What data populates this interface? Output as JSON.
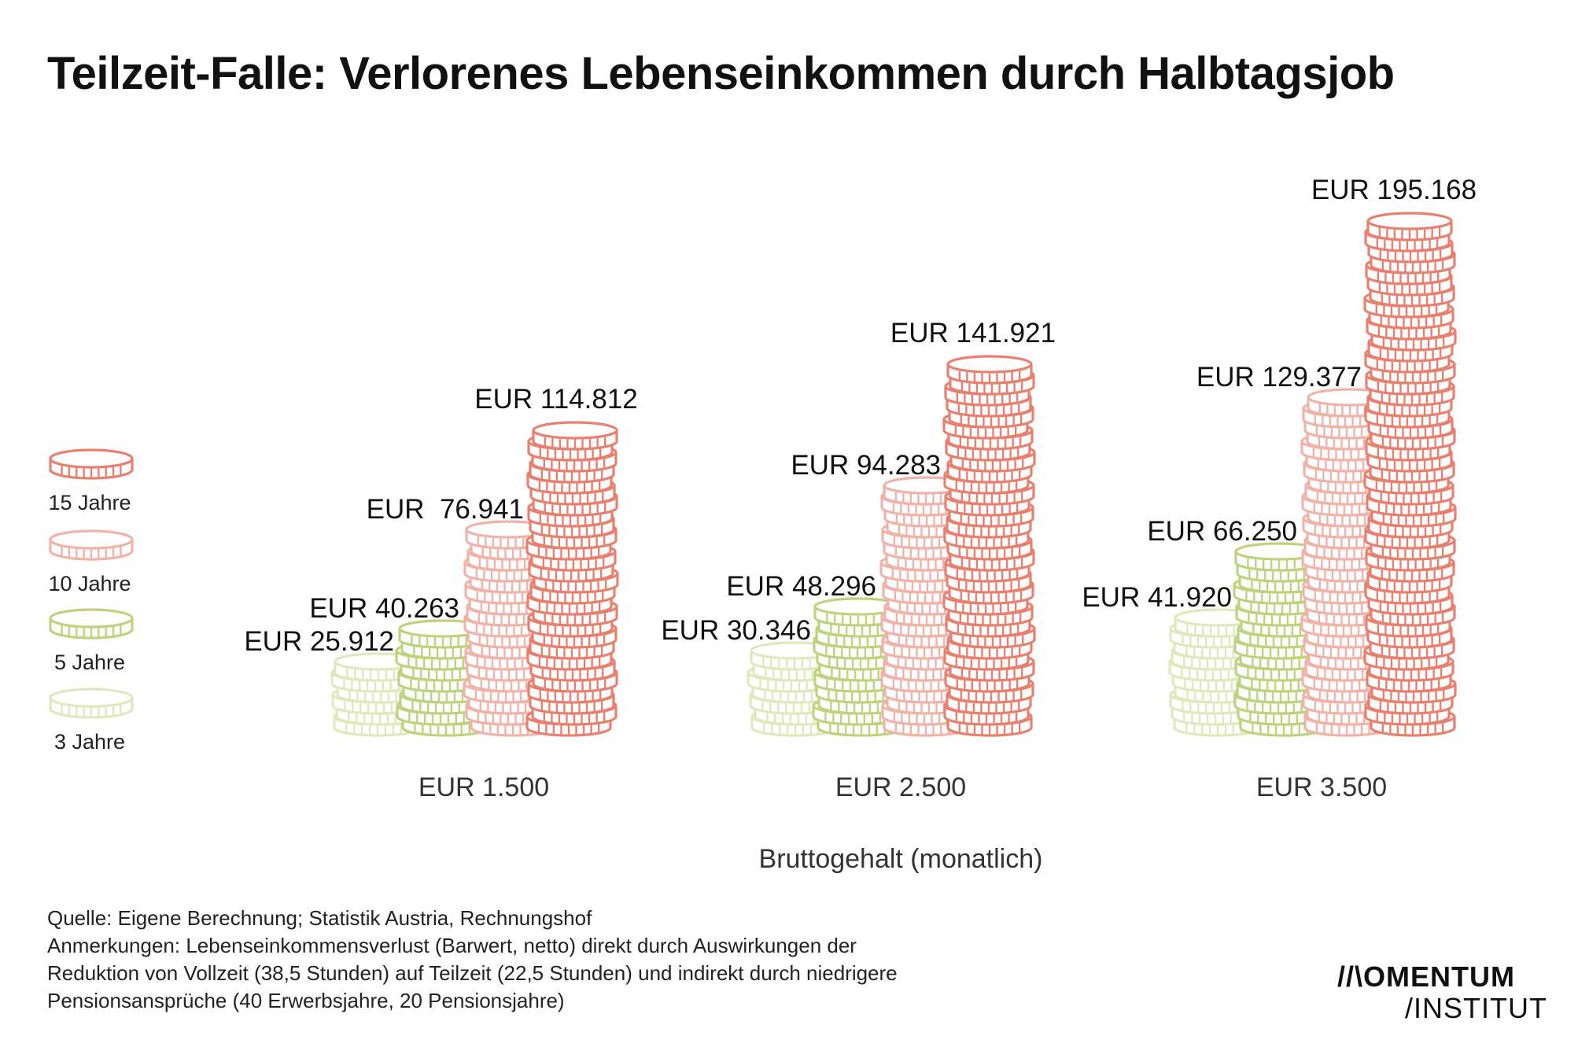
{
  "title": "Teilzeit-Falle: Verlorenes Lebenseinkommen durch Halbtagsjob",
  "colors": {
    "15 Jahre": "#e8806f",
    "10 Jahre": "#f0b2a9",
    "5 Jahre": "#bfd27e",
    "3 Jahre": "#dfe9bd"
  },
  "chart_data": {
    "type": "bar",
    "style": "stacked coin pictograph, grouped",
    "xlabel": "Bruttogehalt (monatlich)",
    "categories": [
      "EUR 1.500",
      "EUR 2.500",
      "EUR 3.500"
    ],
    "series": [
      {
        "name": "3 Jahre",
        "values": [
          25912,
          30346,
          41920
        ],
        "labels": [
          "EUR 25.912",
          "EUR 30.346",
          "EUR 41.920"
        ]
      },
      {
        "name": "5 Jahre",
        "values": [
          40263,
          48296,
          66250
        ],
        "labels": [
          "EUR 40.263",
          "EUR 48.296",
          "EUR 66.250"
        ]
      },
      {
        "name": "10 Jahre",
        "values": [
          76941,
          94283,
          129377
        ],
        "labels": [
          "EUR  76.941",
          "EUR 94.283",
          "EUR 129.377"
        ]
      },
      {
        "name": "15 Jahre",
        "values": [
          114812,
          141921,
          195168
        ],
        "labels": [
          "EUR 114.812",
          "EUR 141.921",
          "EUR 195.168"
        ]
      }
    ],
    "legend_order": [
      "15 Jahre",
      "10 Jahre",
      "5 Jahre",
      "3 Jahre"
    ],
    "legend_position": "left",
    "grid": false
  },
  "footer": {
    "lines": [
      "Quelle: Eigene Berechnung; Statistik Austria, Rechnungshof",
      "Anmerkungen: Lebenseinkommensverlust (Barwert, netto) direkt durch Auswirkungen der",
      "Reduktion von Vollzeit (38,5 Stunden) auf Teilzeit (22,5 Stunden) und indirekt durch niedrigere",
      "Pensionsansprüche (40 Erwerbsjahre, 20 Pensionsjahre)"
    ]
  },
  "logo": {
    "line1": "//\\OMENTUM",
    "line2": "/INSTITUT"
  }
}
